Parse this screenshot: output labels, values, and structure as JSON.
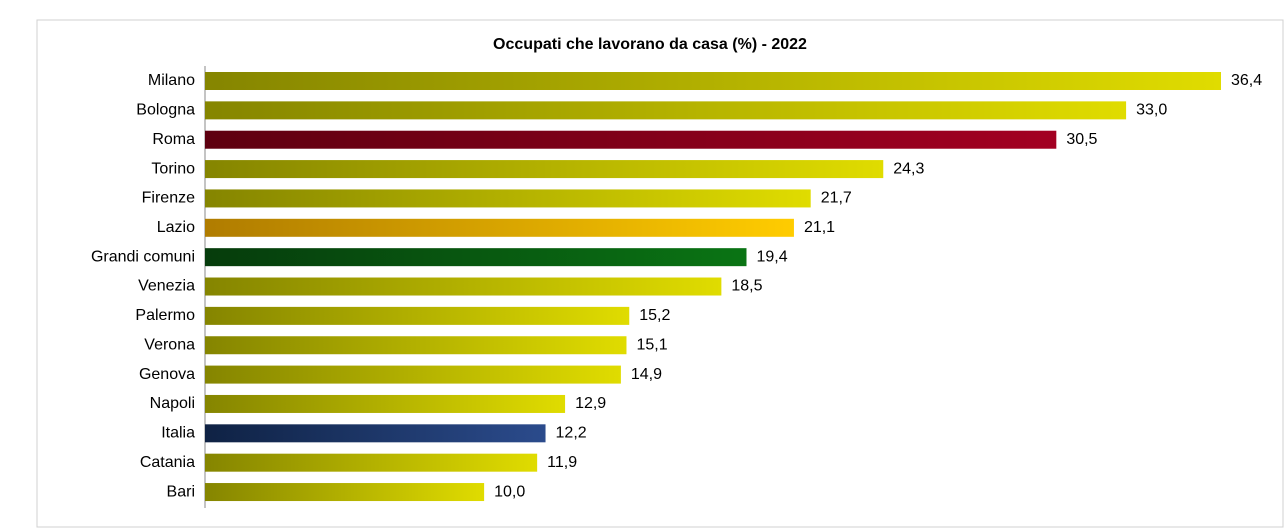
{
  "chart_data": {
    "type": "barh",
    "title": "Occupati che lavorano da casa (%) -  2022",
    "categories": [
      "Milano",
      "Bologna",
      "Roma",
      "Torino",
      "Firenze",
      "Lazio",
      "Grandi comuni",
      "Venezia",
      "Palermo",
      "Verona",
      "Genova",
      "Napoli",
      "Italia",
      "Catania",
      "Bari"
    ],
    "values": [
      36.4,
      33.0,
      30.5,
      24.3,
      21.7,
      21.1,
      19.4,
      18.5,
      15.2,
      15.1,
      14.9,
      12.9,
      12.2,
      11.9,
      10.0
    ],
    "value_labels": [
      "36,4",
      "33,0",
      "30,5",
      "24,3",
      "21,7",
      "21,1",
      "19,4",
      "18,5",
      "15,2",
      "15,1",
      "14,9",
      "12,9",
      "12,2",
      "11,9",
      "10,0"
    ],
    "colors": [
      [
        "#858500",
        "#e0dc00"
      ],
      [
        "#858500",
        "#e0dc00"
      ],
      [
        "#5e0010",
        "#a30022"
      ],
      [
        "#858500",
        "#e0dc00"
      ],
      [
        "#858500",
        "#e0dc00"
      ],
      [
        "#b07c00",
        "#ffcc00"
      ],
      [
        "#063c0c",
        "#0a7414"
      ],
      [
        "#858500",
        "#e0dc00"
      ],
      [
        "#858500",
        "#e0dc00"
      ],
      [
        "#858500",
        "#e0dc00"
      ],
      [
        "#858500",
        "#e0dc00"
      ],
      [
        "#858500",
        "#e0dc00"
      ],
      [
        "#0f2244",
        "#2b4b8c"
      ],
      [
        "#858500",
        "#e0dc00"
      ],
      [
        "#858500",
        "#e0dc00"
      ]
    ]
  }
}
